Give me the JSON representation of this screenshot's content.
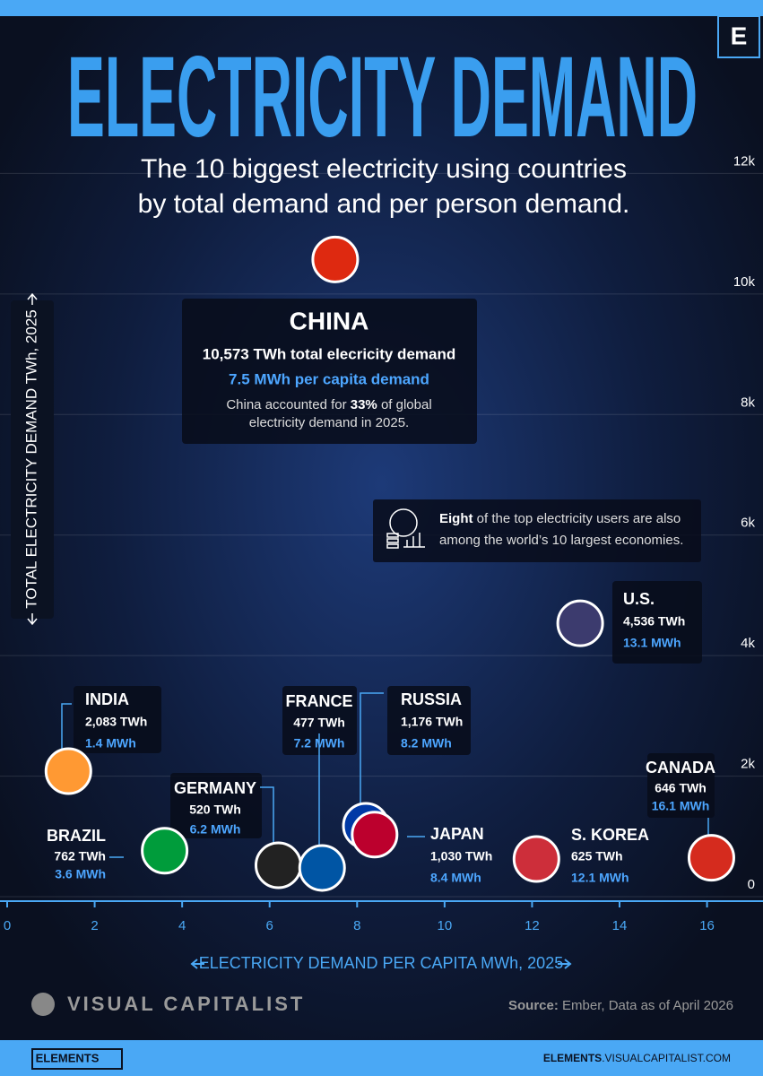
{
  "logo": "E",
  "chart_data": {
    "type": "scatter",
    "title": "ELECTRICITY DEMAND",
    "subtitle": [
      "The 10 biggest electricity using countries",
      "by total demand and per person demand."
    ],
    "x_label": "ELECTRICITY DEMAND PER CAPITA MWh, 2025",
    "y_label": "TOTAL ELECTRICITY DEMAND TWh, 2025",
    "xlim": [
      0,
      17.3
    ],
    "xticks": [
      0,
      2,
      4,
      6,
      8,
      10,
      12,
      14,
      16
    ],
    "ylim": [
      0,
      14000
    ],
    "yticks": [
      0,
      {
        "value": 2000,
        "label": "2k"
      },
      {
        "value": 4000,
        "label": "4k"
      },
      {
        "value": 6000,
        "label": "6k"
      },
      {
        "value": 8000,
        "label": "8k"
      },
      {
        "value": 10000,
        "label": "10k"
      },
      {
        "value": 12000,
        "label": "12k"
      }
    ],
    "grid": true,
    "points": [
      {
        "label": "CHINA",
        "x": 7.5,
        "y": 10573,
        "value_label": "10,573 TWh total elecricity demand",
        "x_label": "7.5 MWh per capita demand",
        "color": "#de2910"
      },
      {
        "label": "U.S.",
        "x": 13.1,
        "y": 4536,
        "value_label": "4,536 TWh",
        "x_label": "13.1 MWh",
        "color": "#3c3b6e"
      },
      {
        "label": "INDIA",
        "x": 1.4,
        "y": 2083,
        "value_label": "2,083 TWh",
        "x_label": "1.4 MWh",
        "color": "#ff9933"
      },
      {
        "label": "RUSSIA",
        "x": 8.2,
        "y": 1176,
        "value_label": "1,176 TWh",
        "x_label": "8.2 MWh",
        "color": "#0039a6"
      },
      {
        "label": "JAPAN",
        "x": 8.4,
        "y": 1030,
        "value_label": "1,030 TWh",
        "x_label": "8.4 MWh",
        "color": "#bc002d"
      },
      {
        "label": "GERMANY",
        "x": 6.2,
        "y": 520,
        "value_label": "520 TWh",
        "x_label": "6.2 MWh",
        "color": "#222222"
      },
      {
        "label": "FRANCE",
        "x": 7.2,
        "y": 477,
        "value_label": "477 TWh",
        "x_label": "7.2 MWh",
        "color": "#0055a4"
      },
      {
        "label": "BRAZIL",
        "x": 3.6,
        "y": 762,
        "value_label": "762 TWh",
        "x_label": "3.6 MWh",
        "color": "#009c3b"
      },
      {
        "label": "CANADA",
        "x": 16.1,
        "y": 646,
        "value_label": "646 TWh",
        "x_label": "16.1 MWh",
        "color": "#d52b1e"
      },
      {
        "label": "S. KOREA",
        "x": 12.1,
        "y": 625,
        "value_label": "625 TWh",
        "x_label": "12.1 MWh",
        "color": "#cd2e3a"
      }
    ],
    "annotations": {
      "china_note": [
        "China accounted for ",
        "33%",
        " of global",
        "electricity demand in 2025."
      ],
      "economies": [
        "Eight",
        " of the top electricity users are also",
        "among the world’s 10 largest economies."
      ]
    }
  },
  "source": [
    "Source:",
    " Ember, Data as of April 2026"
  ],
  "footer": {
    "brand": "VISUAL CAPITALIST",
    "elements": "ELEMENTS",
    "url": [
      "ELEMENTS",
      ".VISUALCAPITALIST.COM"
    ]
  }
}
